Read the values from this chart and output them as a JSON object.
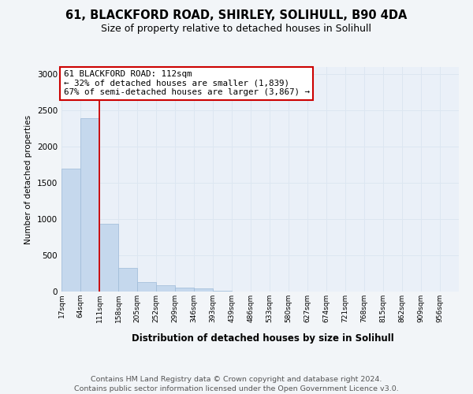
{
  "title1": "61, BLACKFORD ROAD, SHIRLEY, SOLIHULL, B90 4DA",
  "title2": "Size of property relative to detached houses in Solihull",
  "xlabel": "Distribution of detached houses by size in Solihull",
  "ylabel": "Number of detached properties",
  "bin_labels": [
    "17sqm",
    "64sqm",
    "111sqm",
    "158sqm",
    "205sqm",
    "252sqm",
    "299sqm",
    "346sqm",
    "393sqm",
    "439sqm",
    "486sqm",
    "533sqm",
    "580sqm",
    "627sqm",
    "674sqm",
    "721sqm",
    "768sqm",
    "815sqm",
    "862sqm",
    "909sqm",
    "956sqm"
  ],
  "bar_values": [
    1700,
    2390,
    940,
    330,
    130,
    90,
    55,
    40,
    10,
    0,
    0,
    0,
    0,
    0,
    0,
    0,
    0,
    0,
    0,
    0,
    0
  ],
  "bar_color": "#c5d8ed",
  "bar_edge_color": "#9dbad8",
  "vline_color": "#cc0000",
  "vline_x": 1.5,
  "annotation_line1": "61 BLACKFORD ROAD: 112sqm",
  "annotation_line2": "← 32% of detached houses are smaller (1,839)",
  "annotation_line3": "67% of semi-detached houses are larger (3,867) →",
  "annotation_box_facecolor": "#ffffff",
  "annotation_box_edgecolor": "#cc0000",
  "ylim": [
    0,
    3100
  ],
  "yticks": [
    0,
    500,
    1000,
    1500,
    2000,
    2500,
    3000
  ],
  "grid_color": "#dce6f1",
  "plot_bg_color": "#eaf0f8",
  "fig_bg_color": "#f2f5f8",
  "footer_line1": "Contains HM Land Registry data © Crown copyright and database right 2024.",
  "footer_line2": "Contains public sector information licensed under the Open Government Licence v3.0.",
  "title1_fontsize": 10.5,
  "title2_fontsize": 9,
  "ann_fontsize": 7.8,
  "footer_fontsize": 6.8,
  "ylabel_fontsize": 7.5,
  "xlabel_fontsize": 8.5,
  "ytick_fontsize": 7.5,
  "xtick_fontsize": 6.5
}
